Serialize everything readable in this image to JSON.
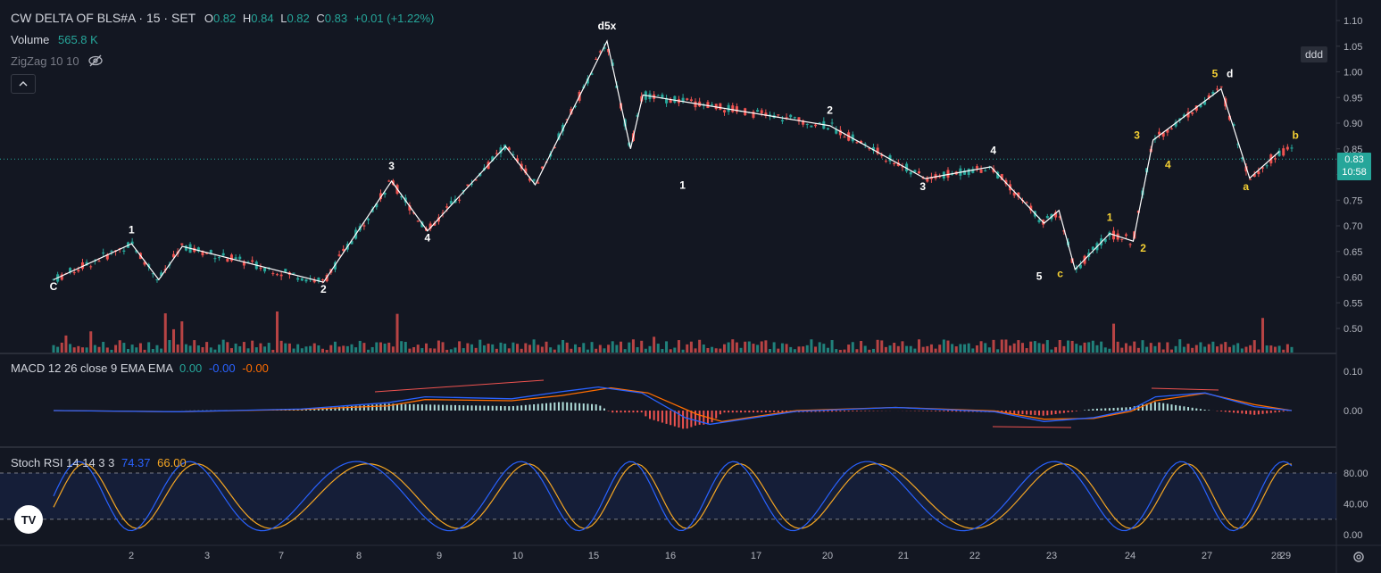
{
  "legend": {
    "symbol": "CW DELTA OF BLS#A · 15 · SET",
    "o_label": "O",
    "o_value": "0.82",
    "h_label": "H",
    "h_value": "0.84",
    "l_label": "L",
    "l_value": "0.82",
    "c_label": "C",
    "c_value": "0.83",
    "change": "+0.01 (+1.22%)",
    "volume_label": "Volume",
    "volume_value": "565.8 K",
    "zigzag_label": "ZigZag 10 10"
  },
  "macd_legend": {
    "label": "MACD 12 26 close 9 EMA EMA",
    "v1": "0.00",
    "v2": "-0.00",
    "v3": "-0.00"
  },
  "stoch_legend": {
    "label": "Stoch RSI 14 14 3 3",
    "k": "74.37",
    "d": "66.00"
  },
  "badge": "ddd",
  "price_tag": {
    "price": "0.83",
    "time": "10:58"
  },
  "logo_text": "TV",
  "colors": {
    "up": "#26a69a",
    "down": "#ef5350",
    "macd": "#2962ff",
    "signal": "#ff6d00",
    "stoch_k": "#2962ff",
    "stoch_d": "#f5a623",
    "bg": "#131722"
  },
  "icons": {
    "visibility": "eye-off-icon",
    "collapse": "chevron-up-icon",
    "settings": "gear-icon"
  },
  "chart_data": [
    {
      "type": "candlestick",
      "title": "CW DELTA OF BLS#A · 15 · SET",
      "y_ticks": [
        "1.10",
        "1.05",
        "1.00",
        "0.95",
        "0.90",
        "0.85",
        "0.80",
        "0.75",
        "0.70",
        "0.65",
        "0.60",
        "0.55",
        "0.50"
      ],
      "ylim": [
        0.475,
        1.125
      ],
      "x_ticks": [
        "2",
        "3",
        "7",
        "8",
        "9",
        "10",
        "15",
        "16",
        "17",
        "20",
        "21",
        "22",
        "23",
        "24",
        "27",
        "28",
        "29"
      ],
      "last_price": 0.83,
      "zigzag_points": [
        [
          0.0,
          0.595
        ],
        [
          0.063,
          0.665
        ],
        [
          0.085,
          0.595
        ],
        [
          0.104,
          0.66
        ],
        [
          0.218,
          0.59
        ],
        [
          0.273,
          0.787
        ],
        [
          0.302,
          0.69
        ],
        [
          0.365,
          0.855
        ],
        [
          0.389,
          0.78
        ],
        [
          0.447,
          1.06
        ],
        [
          0.466,
          0.85
        ],
        [
          0.476,
          0.955
        ],
        [
          0.627,
          0.895
        ],
        [
          0.704,
          0.792
        ],
        [
          0.757,
          0.815
        ],
        [
          0.8,
          0.705
        ],
        [
          0.812,
          0.73
        ],
        [
          0.825,
          0.615
        ],
        [
          0.853,
          0.685
        ],
        [
          0.872,
          0.67
        ],
        [
          0.888,
          0.867
        ],
        [
          0.943,
          0.967
        ],
        [
          0.966,
          0.793
        ],
        [
          0.99,
          0.845
        ]
      ],
      "wave_labels": [
        {
          "t": "C",
          "x": 0.0,
          "y": 0.575,
          "c": "w"
        },
        {
          "t": "1",
          "x": 0.063,
          "y": 0.685,
          "c": "w"
        },
        {
          "t": "2",
          "x": 0.218,
          "y": 0.57,
          "c": "w"
        },
        {
          "t": "3",
          "x": 0.273,
          "y": 0.81,
          "c": "w"
        },
        {
          "t": "4",
          "x": 0.302,
          "y": 0.67,
          "c": "w"
        },
        {
          "t": "d5x",
          "x": 0.447,
          "y": 1.083,
          "c": "w"
        },
        {
          "t": "2",
          "x": 0.627,
          "y": 0.918,
          "c": "w"
        },
        {
          "t": "1",
          "x": 0.508,
          "y": 0.772,
          "c": "w"
        },
        {
          "t": "3",
          "x": 0.702,
          "y": 0.77,
          "c": "w"
        },
        {
          "t": "4",
          "x": 0.759,
          "y": 0.84,
          "c": "w"
        },
        {
          "t": "5",
          "x": 0.796,
          "y": 0.595,
          "c": "w"
        },
        {
          "t": "c",
          "x": 0.813,
          "y": 0.6,
          "c": "y"
        },
        {
          "t": "1",
          "x": 0.853,
          "y": 0.71,
          "c": "y"
        },
        {
          "t": "2",
          "x": 0.88,
          "y": 0.65,
          "c": "y"
        },
        {
          "t": "3",
          "x": 0.875,
          "y": 0.87,
          "c": "y"
        },
        {
          "t": "4",
          "x": 0.9,
          "y": 0.812,
          "c": "y"
        },
        {
          "t": "5",
          "x": 0.938,
          "y": 0.99,
          "c": "y"
        },
        {
          "t": "d",
          "x": 0.95,
          "y": 0.99,
          "c": "w"
        },
        {
          "t": "a",
          "x": 0.963,
          "y": 0.77,
          "c": "y"
        },
        {
          "t": "b",
          "x": 1.003,
          "y": 0.87,
          "c": "y"
        }
      ]
    },
    {
      "type": "bar",
      "title": "Volume"
    },
    {
      "type": "line",
      "title": "MACD 12 26 close 9 EMA EMA",
      "y_ticks": [
        "0.10",
        "0.00"
      ],
      "ylim": [
        -0.09,
        0.125
      ],
      "macd": [
        [
          0.0,
          0.0
        ],
        [
          0.1,
          -0.003
        ],
        [
          0.2,
          0.004
        ],
        [
          0.27,
          0.02
        ],
        [
          0.3,
          0.035
        ],
        [
          0.37,
          0.03
        ],
        [
          0.41,
          0.048
        ],
        [
          0.44,
          0.06
        ],
        [
          0.475,
          0.045
        ],
        [
          0.51,
          -0.018
        ],
        [
          0.53,
          -0.035
        ],
        [
          0.6,
          -0.002
        ],
        [
          0.68,
          0.008
        ],
        [
          0.76,
          -0.003
        ],
        [
          0.8,
          -0.028
        ],
        [
          0.84,
          -0.018
        ],
        [
          0.87,
          0.002
        ],
        [
          0.89,
          0.035
        ],
        [
          0.93,
          0.045
        ],
        [
          0.97,
          0.01
        ],
        [
          1.0,
          0.0
        ]
      ],
      "signal": [
        [
          0.0,
          0.0
        ],
        [
          0.1,
          -0.003
        ],
        [
          0.2,
          0.003
        ],
        [
          0.27,
          0.012
        ],
        [
          0.3,
          0.028
        ],
        [
          0.37,
          0.025
        ],
        [
          0.41,
          0.038
        ],
        [
          0.45,
          0.058
        ],
        [
          0.48,
          0.045
        ],
        [
          0.52,
          -0.01
        ],
        [
          0.54,
          -0.028
        ],
        [
          0.6,
          0.0
        ],
        [
          0.68,
          0.008
        ],
        [
          0.76,
          -0.001
        ],
        [
          0.8,
          -0.022
        ],
        [
          0.84,
          -0.02
        ],
        [
          0.87,
          -0.002
        ],
        [
          0.89,
          0.025
        ],
        [
          0.93,
          0.044
        ],
        [
          0.97,
          0.015
        ],
        [
          1.0,
          0.0
        ]
      ]
    },
    {
      "type": "line",
      "title": "Stoch RSI 14 14 3 3",
      "y_ticks": [
        "80.00",
        "40.00",
        "0.00"
      ],
      "ylim": [
        -8,
        112
      ],
      "bands": [
        20,
        80
      ],
      "k_last": 74.37,
      "d_last": 66.0
    }
  ]
}
